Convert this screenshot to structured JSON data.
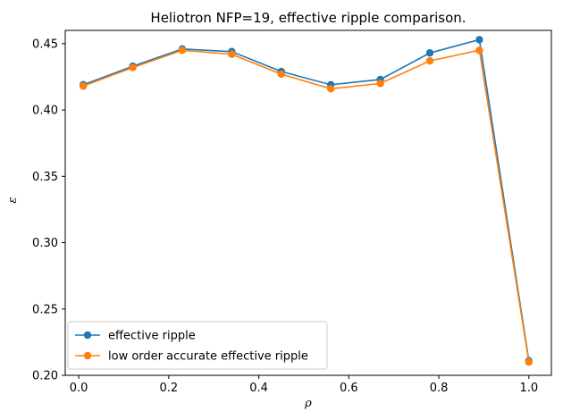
{
  "chart_data": {
    "type": "line",
    "title": "Heliotron NFP=19, effective ripple comparison.",
    "xlabel": "ρ",
    "ylabel": "ε",
    "xlim": [
      -0.03,
      1.05
    ],
    "ylim": [
      0.2,
      0.46
    ],
    "xticks": [
      0.0,
      0.2,
      0.4,
      0.6,
      0.8,
      1.0
    ],
    "xtick_labels": [
      "0.0",
      "0.2",
      "0.4",
      "0.6",
      "0.8",
      "1.0"
    ],
    "yticks": [
      0.2,
      0.25,
      0.3,
      0.35,
      0.4,
      0.45
    ],
    "ytick_labels": [
      "0.20",
      "0.25",
      "0.30",
      "0.35",
      "0.40",
      "0.45"
    ],
    "grid": false,
    "legend_position": "lower-left",
    "x": [
      0.01,
      0.12,
      0.23,
      0.34,
      0.45,
      0.56,
      0.67,
      0.78,
      0.89,
      1.0
    ],
    "series": [
      {
        "name": "effective ripple",
        "color": "#1f77b4",
        "marker": "circle",
        "values": [
          0.419,
          0.433,
          0.446,
          0.444,
          0.429,
          0.419,
          0.423,
          0.443,
          0.453,
          0.211
        ]
      },
      {
        "name": "low order accurate effective ripple",
        "color": "#ff7f0e",
        "marker": "circle",
        "values": [
          0.418,
          0.432,
          0.445,
          0.442,
          0.427,
          0.416,
          0.42,
          0.437,
          0.445,
          0.21
        ]
      }
    ]
  }
}
